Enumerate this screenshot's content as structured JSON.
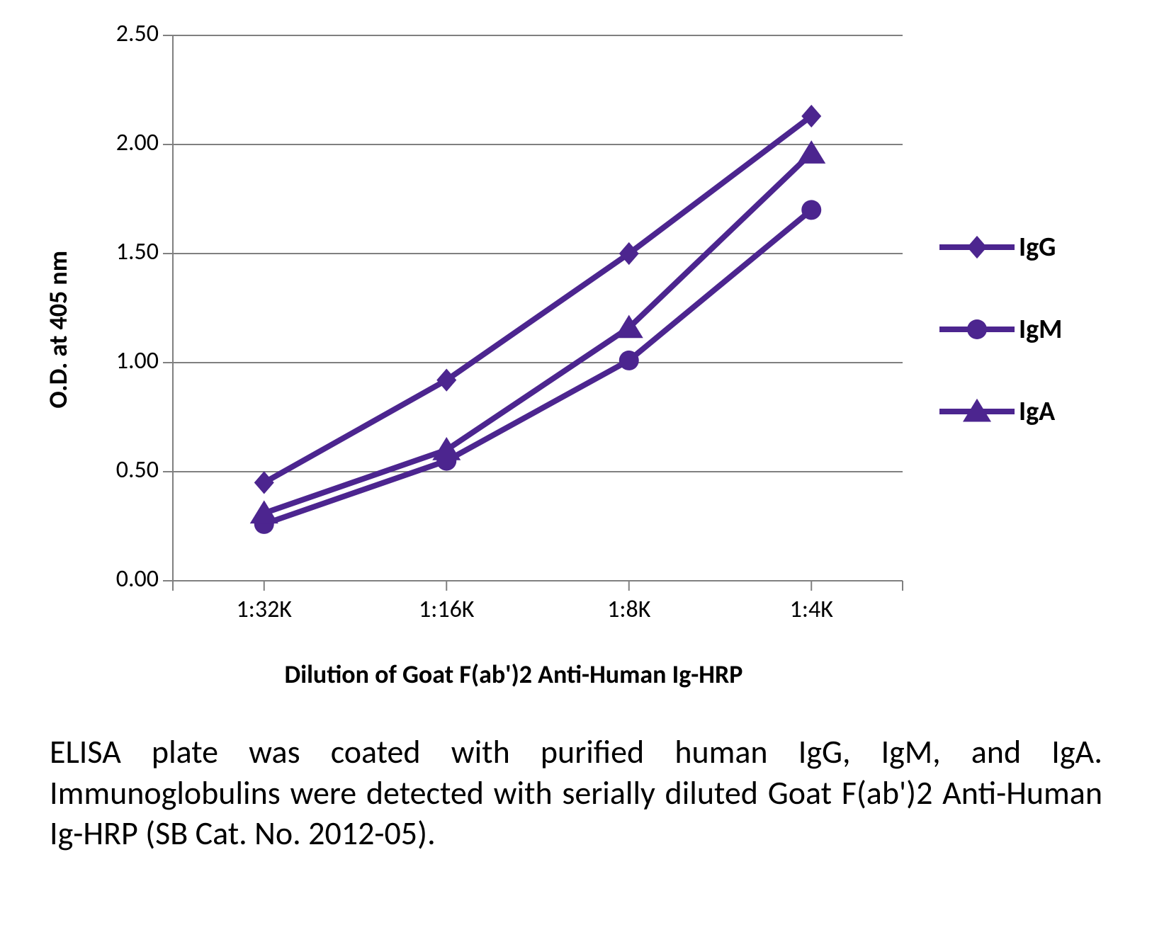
{
  "chart": {
    "type": "line",
    "y_axis_title": "O.D. at 405 nm",
    "x_axis_title": "Dilution of Goat F(ab')2 Anti-Human Ig-HRP",
    "ylim": [
      0.0,
      2.5
    ],
    "ytick_step": 0.5,
    "y_ticks": [
      "0.00",
      "0.50",
      "1.00",
      "1.50",
      "2.00",
      "2.50"
    ],
    "x_categories": [
      "1:32K",
      "1:16K",
      "1:8K",
      "1:4K"
    ],
    "background_color": "#ffffff",
    "grid_color": "#808080",
    "axis_color": "#808080",
    "tickmark_color": "#808080",
    "line_width": 8,
    "marker_size": 14,
    "tick_font_size": 34,
    "series": [
      {
        "name": "IgG",
        "marker": "diamond",
        "color": "#4c258f",
        "values": [
          0.45,
          0.92,
          1.5,
          2.13
        ]
      },
      {
        "name": "IgM",
        "marker": "circle",
        "color": "#4c258f",
        "values": [
          0.26,
          0.55,
          1.01,
          1.7
        ]
      },
      {
        "name": "IgA",
        "marker": "triangle",
        "color": "#4c258f",
        "values": [
          0.31,
          0.6,
          1.16,
          1.96
        ]
      }
    ]
  },
  "caption": "ELISA plate was coated with purified human IgG, IgM, and IgA. Immunoglobulins were detected with serially diluted Goat F(ab')2 Anti-Human Ig-HRP (SB Cat. No. 2012-05)."
}
